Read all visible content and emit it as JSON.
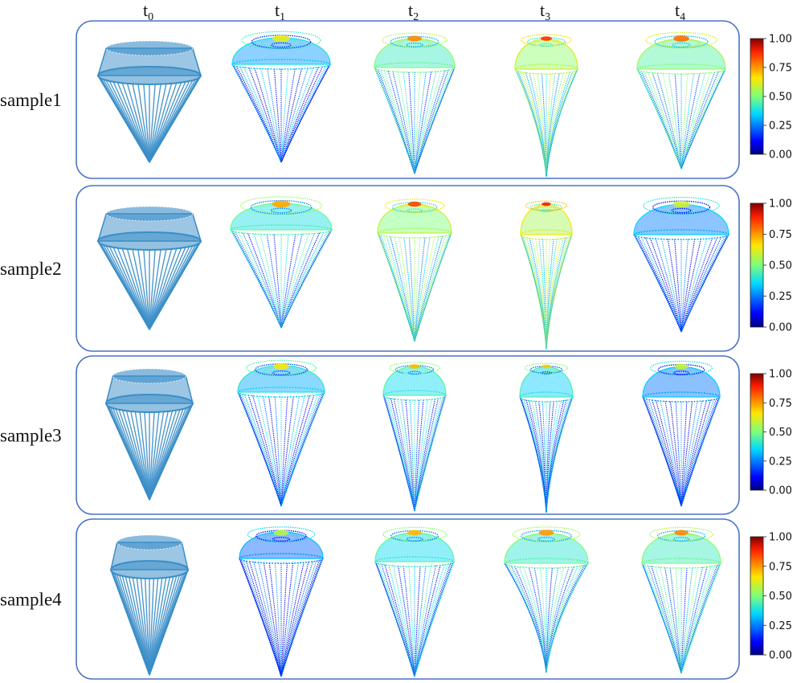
{
  "columns": [
    {
      "base": "t",
      "sub": "0"
    },
    {
      "base": "t",
      "sub": "1"
    },
    {
      "base": "t",
      "sub": "2"
    },
    {
      "base": "t",
      "sub": "3"
    },
    {
      "base": "t",
      "sub": "4"
    }
  ],
  "rows": [
    {
      "label": "sample1"
    },
    {
      "label": "sample2"
    },
    {
      "label": "sample3"
    },
    {
      "label": "sample4"
    }
  ],
  "colorbar": {
    "colormap": "jet",
    "ticks": [
      "1.00",
      "0.75",
      "0.50",
      "0.25",
      "0.00"
    ]
  },
  "colors": {
    "frame": "#4a72c4",
    "initial_shape": "#3a8ec8"
  }
}
